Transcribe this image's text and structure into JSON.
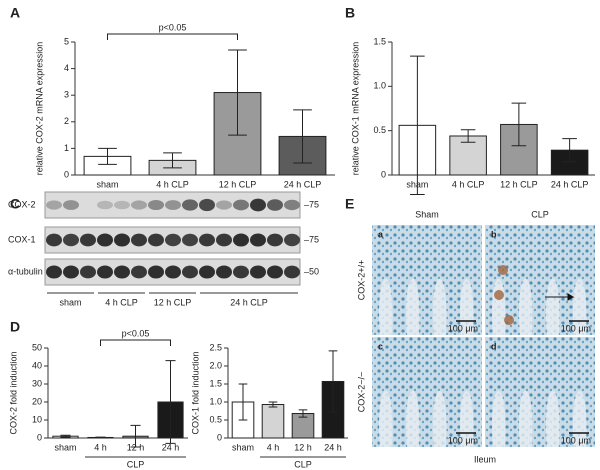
{
  "panel_letters": [
    "A",
    "B",
    "C",
    "D",
    "E"
  ],
  "chart_data": [
    {
      "type": "bar",
      "y_label": "relative COX-2 mRNA expression",
      "categories": [
        "sham",
        "4 h CLP",
        "12 h CLP",
        "24 h CLP"
      ],
      "values": [
        0.7,
        0.55,
        3.1,
        1.45
      ],
      "errors": [
        0.3,
        0.28,
        1.6,
        1.0
      ],
      "colors": [
        "#ffffff",
        "#d4d4d4",
        "#9a9a9a",
        "#5c5c5c"
      ],
      "ylim": [
        0,
        5
      ],
      "yticks": [
        0,
        1,
        2,
        3,
        4,
        5
      ],
      "annotation": "p<0.05"
    },
    {
      "type": "bar",
      "y_label": "relative COX-1 mRNA expression",
      "categories": [
        "sham",
        "4 h CLP",
        "12 h CLP",
        "24 h CLP"
      ],
      "values": [
        0.56,
        0.44,
        0.57,
        0.28
      ],
      "errors": [
        0.78,
        0.07,
        0.24,
        0.13
      ],
      "colors": [
        "#ffffff",
        "#d4d4d4",
        "#9a9a9a",
        "#1a1a1a"
      ],
      "ylim": [
        0,
        1.5
      ],
      "yticks": [
        0,
        0.5,
        {
          "value": 1,
          "label": "1.0"
        },
        1.5
      ]
    },
    {
      "type": "bar",
      "y_label": "COX-2 fold induction",
      "categories": [
        "sham",
        "4 h",
        "12 h",
        "24 h"
      ],
      "values": [
        1,
        0.3,
        1,
        20
      ],
      "errors": [
        0.5,
        0.2,
        6,
        23
      ],
      "colors": [
        "#ffffff",
        "#d4d4d4",
        "#9a9a9a",
        "#1a1a1a"
      ],
      "ylim": [
        0,
        50
      ],
      "yticks": [
        0,
        10,
        20,
        30,
        40,
        50
      ],
      "annotation": "p<0.05",
      "group_label": "CLP"
    },
    {
      "type": "bar",
      "y_label": "COX-1 fold induction",
      "categories": [
        "sham",
        "4 h",
        "12 h",
        "24 h"
      ],
      "values": [
        1.0,
        0.93,
        0.68,
        1.57
      ],
      "errors": [
        0.5,
        0.07,
        0.1,
        0.85
      ],
      "colors": [
        "#ffffff",
        "#d4d4d4",
        "#9a9a9a",
        "#1a1a1a"
      ],
      "ylim": [
        0,
        2.5
      ],
      "yticks": [
        0,
        0.5,
        {
          "value": 1,
          "label": "1.0"
        },
        1.5,
        {
          "value": 2,
          "label": "2.0"
        },
        2.5
      ],
      "group_label": "CLP"
    }
  ],
  "blot": {
    "rows": [
      "COX-2",
      "COX-1",
      "α-tubulin"
    ],
    "markers": [
      "–75",
      "–75",
      "–50"
    ],
    "groups": [
      "sham",
      "4 h CLP",
      "12 h CLP",
      "24 h CLP"
    ]
  },
  "histology": {
    "columns": [
      "Sham",
      "CLP"
    ],
    "rows": [
      "COX-2+/+",
      "COX-2−/−"
    ],
    "panels": [
      "a",
      "b",
      "c",
      "d"
    ],
    "scale": [
      "100 μm",
      "100 μm",
      "100 μm",
      "100 μm"
    ],
    "caption": "Ileum"
  }
}
